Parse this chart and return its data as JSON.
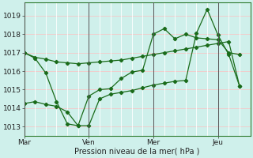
{
  "xlabel": "Pression niveau de la mer( hPa )",
  "bg_color": "#cff0eb",
  "grid_color_h": "#f5c8c8",
  "grid_color_v": "#ffffff",
  "line_color": "#1a6b1a",
  "ylim": [
    1012.5,
    1019.7
  ],
  "xtick_labels": [
    "Mar",
    "Ven",
    "Mer",
    "Jeu"
  ],
  "xtick_positions": [
    0,
    3,
    6,
    9
  ],
  "ytick_values": [
    1013,
    1014,
    1015,
    1016,
    1017,
    1018,
    1019
  ],
  "vline_positions": [
    0,
    3,
    6,
    9
  ],
  "xlim": [
    0,
    10.5
  ],
  "series1_x": [
    0,
    0.5,
    1.0,
    1.5,
    2.0,
    2.5,
    3.0,
    3.5,
    4.0,
    4.5,
    5.0,
    5.5,
    6.0,
    6.5,
    7.0,
    7.5,
    8.0,
    8.5,
    9.0,
    9.5,
    10.0
  ],
  "series1_y": [
    1017.0,
    1016.75,
    1016.65,
    1016.5,
    1016.45,
    1016.4,
    1016.45,
    1016.5,
    1016.55,
    1016.6,
    1016.7,
    1016.8,
    1016.9,
    1017.0,
    1017.1,
    1017.2,
    1017.3,
    1017.4,
    1017.5,
    1017.6,
    1015.2
  ],
  "series2_x": [
    0,
    0.5,
    1.0,
    1.5,
    2.0,
    2.5,
    3.0,
    3.5,
    4.0,
    4.5,
    5.0,
    5.5,
    6.0,
    6.5,
    7.0,
    7.5,
    8.0,
    8.5,
    9.0,
    9.5,
    10.0
  ],
  "series2_y": [
    1017.0,
    1016.7,
    1015.9,
    1014.35,
    1013.15,
    1013.05,
    1014.65,
    1015.0,
    1015.05,
    1015.6,
    1015.95,
    1016.05,
    1018.0,
    1018.3,
    1017.75,
    1018.0,
    1017.8,
    1017.75,
    1017.7,
    1017.0,
    1016.9
  ],
  "series3_x": [
    0,
    0.5,
    1.0,
    1.5,
    2.0,
    2.5,
    3.0,
    3.5,
    4.0,
    4.5,
    5.0,
    5.5,
    6.0,
    6.5,
    7.0,
    7.5,
    8.0,
    8.5,
    9.0,
    9.5,
    10.0
  ],
  "series3_y": [
    1014.25,
    1014.35,
    1014.2,
    1014.1,
    1013.8,
    1013.05,
    1013.05,
    1014.5,
    1014.75,
    1014.85,
    1014.95,
    1015.1,
    1015.25,
    1015.35,
    1015.45,
    1015.5,
    1018.05,
    1019.35,
    1017.95,
    1016.9,
    1015.2
  ]
}
